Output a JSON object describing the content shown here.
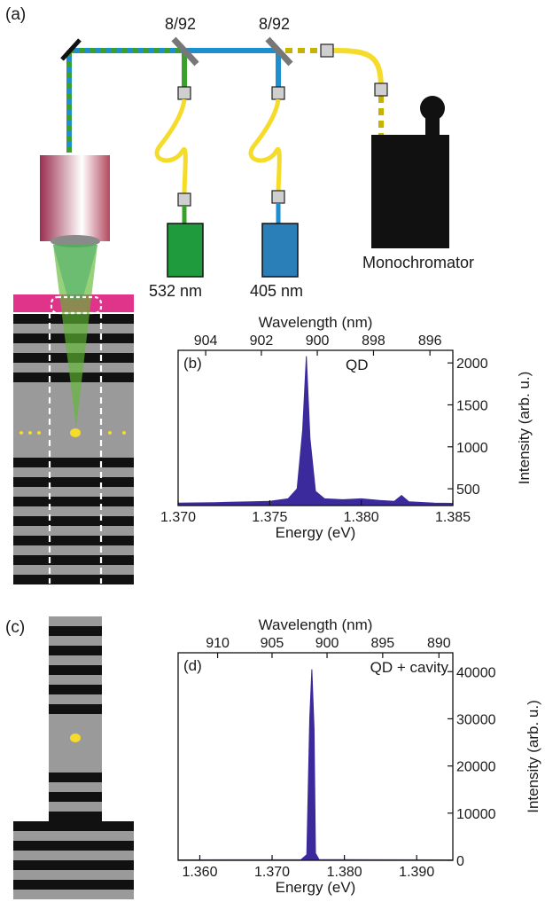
{
  "panels": {
    "a": "(a)",
    "b": "(b)",
    "c": "(c)",
    "d": "(d)"
  },
  "setup": {
    "splitter_1": "8/92",
    "splitter_2": "8/92",
    "laser_green": "532 nm",
    "laser_blue": "405 nm",
    "monochromator": "Monochromator"
  },
  "colors": {
    "green": "#3aa02c",
    "blue": "#1d8fcf",
    "fiber": "#f5dc2a",
    "qd": "#f5dc2a",
    "dbr_dark": "#111111",
    "dbr_light": "#9a9a9a",
    "capping": "#e0348a",
    "spectrum": "#3b2a9c"
  },
  "chart_data": [
    {
      "type": "area",
      "panel": "(b)",
      "annotation": "QD",
      "xlabel": "Energy (eV)",
      "x2label": "Wavelength (nm)",
      "ylabel": "Intensity (arb. u.)",
      "xlim": [
        1.37,
        1.385
      ],
      "ylim": [
        300,
        2150
      ],
      "xticks": [
        "1.370",
        "1.375",
        "1.380",
        "1.385"
      ],
      "x2ticks": [
        "904",
        "902",
        "900",
        "898",
        "896"
      ],
      "yticks": [
        "500",
        "1000",
        "1500",
        "2000"
      ],
      "series": [
        {
          "x": [
            1.37,
            1.372,
            1.374,
            1.375,
            1.376,
            1.3765,
            1.3768,
            1.377,
            1.3772,
            1.3775,
            1.378,
            1.379,
            1.38,
            1.381,
            1.3818,
            1.3822,
            1.3826,
            1.384,
            1.385
          ],
          "values": [
            330,
            335,
            345,
            350,
            380,
            500,
            1200,
            2080,
            1100,
            470,
            380,
            370,
            380,
            360,
            350,
            420,
            345,
            330,
            325
          ]
        }
      ]
    },
    {
      "type": "area",
      "panel": "(d)",
      "annotation": "QD + cavity",
      "xlabel": "Energy (eV)",
      "x2label": "Wavelength (nm)",
      "ylabel": "Intensity (arb. u.)",
      "xlim": [
        1.357,
        1.395
      ],
      "ylim": [
        0,
        44000
      ],
      "xticks": [
        "1.360",
        "1.370",
        "1.380",
        "1.390"
      ],
      "x2ticks": [
        "910",
        "905",
        "900",
        "895",
        "890"
      ],
      "yticks": [
        "0",
        "10000",
        "20000",
        "30000",
        "40000"
      ],
      "series": [
        {
          "x": [
            1.357,
            1.374,
            1.3748,
            1.3752,
            1.3755,
            1.3758,
            1.376,
            1.3765,
            1.395
          ],
          "values": [
            100,
            150,
            1200,
            30000,
            40500,
            28000,
            1500,
            150,
            100
          ]
        }
      ]
    }
  ]
}
